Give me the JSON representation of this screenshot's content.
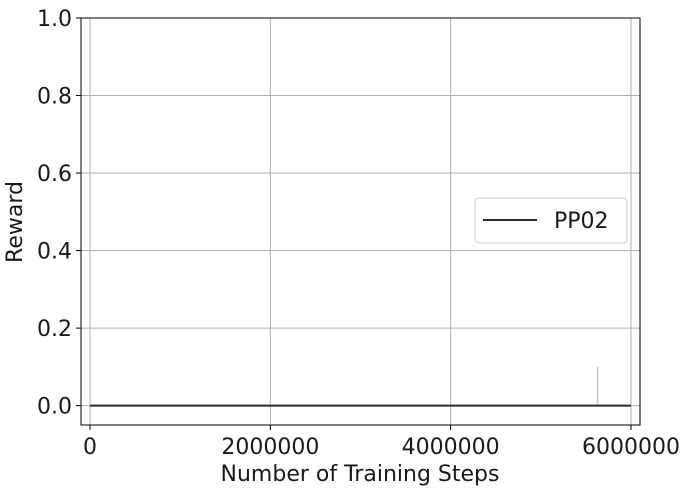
{
  "chart_data": {
    "type": "line",
    "title": "",
    "xlabel": "Number of Training Steps",
    "ylabel": "Reward",
    "xlim": [
      -100000,
      6100000
    ],
    "ylim": [
      -0.05,
      1.0
    ],
    "xticks": [
      0,
      2000000,
      4000000,
      6000000
    ],
    "xtick_labels": [
      "0",
      "2000000",
      "4000000",
      "6000000"
    ],
    "yticks": [
      0.0,
      0.2,
      0.4,
      0.6,
      0.8,
      1.0
    ],
    "ytick_labels": [
      "0.0",
      "0.2",
      "0.4",
      "0.6",
      "0.8",
      "1.0"
    ],
    "grid": true,
    "legend_position": "center-right",
    "series": [
      {
        "name": "PP02",
        "color": "#2b2b2b",
        "x": [
          0,
          6000000
        ],
        "y": [
          0.0,
          0.0
        ]
      }
    ],
    "spike": {
      "color": "#c8c8c8",
      "x": 5630000,
      "y": [
        0.0,
        0.1
      ]
    }
  }
}
